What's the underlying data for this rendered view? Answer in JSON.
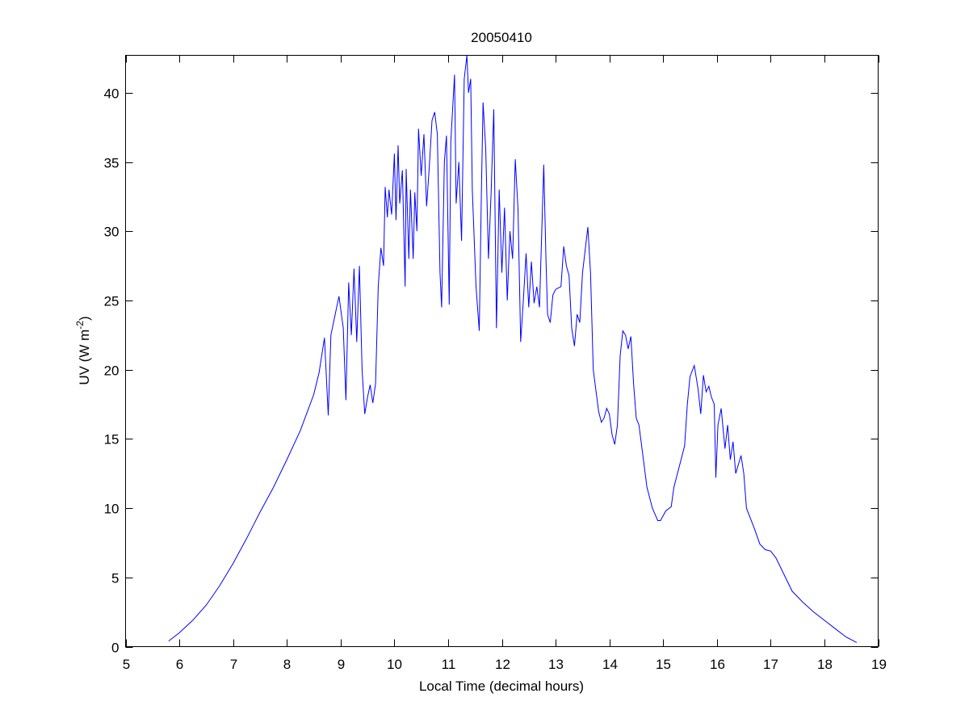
{
  "chart_data": {
    "type": "line",
    "title": "20050410",
    "xlabel": "Local Time (decimal hours)",
    "ylabel": "UV (W m",
    "ylabel_sup": "-2",
    "ylabel_close": ")",
    "xlim": [
      5,
      19
    ],
    "ylim": [
      0,
      42.7
    ],
    "xticks": [
      5,
      6,
      7,
      8,
      9,
      10,
      11,
      12,
      13,
      14,
      15,
      16,
      17,
      18,
      19
    ],
    "yticks": [
      0,
      5,
      10,
      15,
      20,
      25,
      30,
      35,
      40
    ],
    "grid": false,
    "series_color": "#0000ff",
    "series": [
      {
        "name": "UV",
        "x": [
          5.8,
          6.0,
          6.25,
          6.5,
          6.75,
          7.0,
          7.25,
          7.5,
          7.75,
          8.0,
          8.25,
          8.5,
          8.6,
          8.7,
          8.77,
          8.82,
          8.9,
          8.97,
          9.05,
          9.1,
          9.15,
          9.2,
          9.25,
          9.3,
          9.35,
          9.4,
          9.45,
          9.5,
          9.55,
          9.6,
          9.65,
          9.7,
          9.75,
          9.8,
          9.83,
          9.87,
          9.9,
          9.95,
          10.0,
          10.03,
          10.07,
          10.1,
          10.15,
          10.2,
          10.22,
          10.27,
          10.3,
          10.35,
          10.38,
          10.42,
          10.45,
          10.5,
          10.55,
          10.6,
          10.65,
          10.7,
          10.75,
          10.8,
          10.85,
          10.88,
          10.93,
          10.97,
          11.02,
          11.05,
          11.12,
          11.15,
          11.2,
          11.25,
          11.3,
          11.35,
          11.38,
          11.42,
          11.45,
          11.52,
          11.58,
          11.62,
          11.65,
          11.7,
          11.75,
          11.8,
          11.85,
          11.9,
          11.95,
          12.0,
          12.05,
          12.1,
          12.15,
          12.2,
          12.25,
          12.3,
          12.35,
          12.4,
          12.45,
          12.5,
          12.55,
          12.6,
          12.65,
          12.7,
          12.78,
          12.82,
          12.85,
          12.9,
          12.95,
          13.0,
          13.1,
          13.15,
          13.2,
          13.25,
          13.3,
          13.35,
          13.4,
          13.45,
          13.5,
          13.6,
          13.65,
          13.7,
          13.75,
          13.8,
          13.85,
          13.9,
          13.95,
          14.0,
          14.05,
          14.1,
          14.15,
          14.2,
          14.25,
          14.3,
          14.35,
          14.4,
          14.45,
          14.5,
          14.55,
          14.6,
          14.7,
          14.8,
          14.9,
          14.95,
          15.05,
          15.15,
          15.2,
          15.3,
          15.4,
          15.45,
          15.5,
          15.58,
          15.65,
          15.7,
          15.75,
          15.8,
          15.85,
          15.9,
          15.95,
          15.98,
          16.02,
          16.08,
          16.15,
          16.2,
          16.25,
          16.3,
          16.35,
          16.45,
          16.5,
          16.55,
          16.6,
          16.7,
          16.8,
          16.9,
          17.0,
          17.1,
          17.25,
          17.4,
          17.6,
          17.8,
          18.0,
          18.2,
          18.4,
          18.6
        ],
        "y": [
          0.4,
          1.0,
          1.9,
          3.0,
          4.4,
          6.0,
          7.8,
          9.7,
          11.5,
          13.5,
          15.6,
          18.2,
          19.8,
          22.3,
          16.7,
          22.5,
          24.0,
          25.3,
          23.0,
          17.8,
          26.3,
          22.5,
          27.3,
          22.0,
          27.5,
          20.0,
          16.8,
          18.0,
          18.9,
          17.6,
          19.0,
          26.0,
          28.8,
          27.5,
          33.2,
          31.0,
          33.0,
          31.2,
          35.6,
          30.8,
          36.2,
          32.0,
          34.4,
          26.0,
          34.5,
          28.0,
          33.0,
          28.0,
          32.8,
          30.0,
          37.4,
          34.0,
          37.0,
          31.8,
          34.6,
          38.0,
          38.6,
          37.0,
          27.0,
          24.5,
          35.0,
          36.9,
          24.7,
          36.5,
          41.3,
          32.0,
          35.0,
          29.3,
          41.0,
          42.7,
          40.0,
          41.0,
          33.0,
          26.0,
          22.8,
          33.0,
          39.3,
          36.0,
          28.0,
          32.8,
          38.8,
          23.0,
          33.0,
          27.0,
          31.7,
          25.0,
          30.0,
          28.0,
          35.2,
          31.6,
          22.0,
          25.0,
          28.4,
          24.5,
          27.8,
          24.8,
          26.0,
          24.5,
          34.8,
          28.0,
          24.0,
          23.4,
          25.4,
          25.8,
          26.0,
          28.9,
          27.5,
          26.8,
          23.0,
          21.7,
          24.0,
          23.4,
          27.0,
          30.3,
          27.0,
          20.0,
          18.5,
          17.0,
          16.2,
          16.5,
          17.2,
          16.8,
          15.3,
          14.6,
          16.0,
          21.0,
          22.8,
          22.5,
          21.5,
          22.4,
          19.0,
          16.5,
          16.0,
          14.5,
          11.5,
          10.0,
          9.1,
          9.1,
          9.8,
          10.1,
          11.5,
          13.0,
          14.5,
          17.5,
          19.5,
          20.3,
          18.6,
          16.8,
          19.6,
          18.4,
          18.8,
          18.0,
          17.5,
          12.2,
          16.0,
          17.2,
          14.3,
          16.0,
          13.5,
          14.8,
          12.5,
          13.8,
          12.5,
          10.0,
          9.5,
          8.5,
          7.4,
          7.0,
          6.9,
          6.4,
          5.2,
          4.0,
          3.2,
          2.5,
          1.9,
          1.3,
          0.7,
          0.3
        ]
      }
    ]
  }
}
